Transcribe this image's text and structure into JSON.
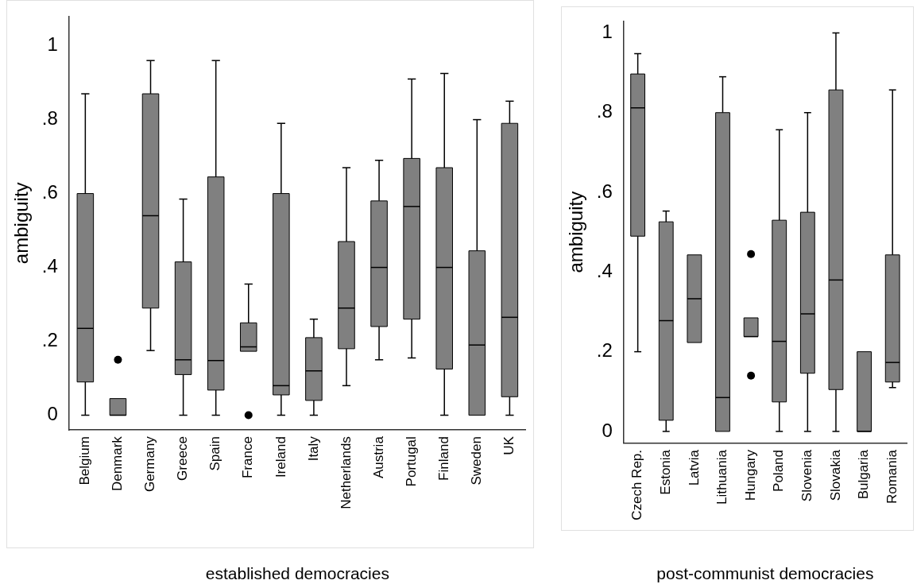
{
  "chart_data": [
    {
      "type": "box",
      "xlabel": "established democracies",
      "ylabel": "ambiguity",
      "categories": [
        "Belgium",
        "Denmark",
        "Germany",
        "Greece",
        "Spain",
        "France",
        "Ireland",
        "Italy",
        "Netherlands",
        "Austria",
        "Portugal",
        "Finland",
        "Sweden",
        "UK"
      ],
      "ylim": [
        -0.04,
        1.08
      ],
      "yticks": [
        {
          "value": 0,
          "label": "0"
        },
        {
          "value": 0.2,
          "label": ".2"
        },
        {
          "value": 0.4,
          "label": ".4"
        },
        {
          "value": 0.6,
          "label": ".6"
        },
        {
          "value": 0.8,
          "label": ".8"
        },
        {
          "value": 1,
          "label": "1"
        }
      ],
      "grid": false,
      "series": [
        {
          "color": "#808080",
          "boxes": [
            {
              "low": 0,
              "q1": 0.09,
              "median": 0.235,
              "q3": 0.6,
              "high": 0.87
            },
            {
              "low": 0,
              "q1": 0,
              "median": 0,
              "q3": 0.045,
              "high": 0.045,
              "outliers": [
                0.15
              ]
            },
            {
              "low": 0.175,
              "q1": 0.29,
              "median": 0.54,
              "q3": 0.87,
              "high": 0.96
            },
            {
              "low": 0,
              "q1": 0.11,
              "median": 0.15,
              "q3": 0.415,
              "high": 0.585
            },
            {
              "low": 0,
              "q1": 0.068,
              "median": 0.148,
              "q3": 0.645,
              "high": 0.96
            },
            {
              "low": 0.173,
              "q1": 0.173,
              "median": 0.185,
              "q3": 0.25,
              "high": 0.355,
              "outliers": [
                0
              ]
            },
            {
              "low": 0,
              "q1": 0.055,
              "median": 0.08,
              "q3": 0.6,
              "high": 0.79
            },
            {
              "low": 0,
              "q1": 0.04,
              "median": 0.12,
              "q3": 0.21,
              "high": 0.26
            },
            {
              "low": 0.08,
              "q1": 0.18,
              "median": 0.29,
              "q3": 0.47,
              "high": 0.67
            },
            {
              "low": 0.15,
              "q1": 0.24,
              "median": 0.4,
              "q3": 0.58,
              "high": 0.69
            },
            {
              "low": 0.155,
              "q1": 0.26,
              "median": 0.565,
              "q3": 0.695,
              "high": 0.91
            },
            {
              "low": 0,
              "q1": 0.125,
              "median": 0.4,
              "q3": 0.67,
              "high": 0.925
            },
            {
              "low": 0,
              "q1": 0,
              "median": 0.19,
              "q3": 0.445,
              "high": 0.8
            },
            {
              "low": 0,
              "q1": 0.05,
              "median": 0.265,
              "q3": 0.79,
              "high": 0.85
            }
          ]
        }
      ]
    },
    {
      "type": "box",
      "xlabel": "post-communist democracies",
      "ylabel": "ambiguity",
      "categories": [
        "Czech Rep.",
        "Estonia",
        "Latvia",
        "Lithuania",
        "Hungary",
        "Poland",
        "Slovenia",
        "Slovakia",
        "Bulgaria",
        "Romania"
      ],
      "ylim": [
        -0.03,
        1.03
      ],
      "yticks": [
        {
          "value": 0,
          "label": "0"
        },
        {
          "value": 0.2,
          "label": ".2"
        },
        {
          "value": 0.4,
          "label": ".4"
        },
        {
          "value": 0.6,
          "label": ".6"
        },
        {
          "value": 0.8,
          "label": ".8"
        },
        {
          "value": 1,
          "label": "1"
        }
      ],
      "grid": false,
      "series": [
        {
          "color": "#808080",
          "boxes": [
            {
              "low": 0.2,
              "q1": 0.49,
              "median": 0.812,
              "q3": 0.897,
              "high": 0.948
            },
            {
              "low": 0,
              "q1": 0.028,
              "median": 0.278,
              "q3": 0.526,
              "high": 0.553
            },
            {
              "low": 0.223,
              "q1": 0.223,
              "median": 0.333,
              "q3": 0.443,
              "high": 0.443
            },
            {
              "low": 0,
              "q1": 0,
              "median": 0.085,
              "q3": 0.8,
              "high": 0.89
            },
            {
              "low": 0.238,
              "q1": 0.238,
              "median": 0.238,
              "q3": 0.285,
              "high": 0.285,
              "outliers": [
                0.445,
                0.14
              ]
            },
            {
              "low": 0,
              "q1": 0.074,
              "median": 0.226,
              "q3": 0.53,
              "high": 0.757
            },
            {
              "low": 0,
              "q1": 0.146,
              "median": 0.295,
              "q3": 0.55,
              "high": 0.8
            },
            {
              "low": 0,
              "q1": 0.105,
              "median": 0.38,
              "q3": 0.857,
              "high": 1
            },
            {
              "low": 0,
              "q1": 0,
              "median": 0,
              "q3": 0.2,
              "high": 0.2
            },
            {
              "low": 0.11,
              "q1": 0.124,
              "median": 0.173,
              "q3": 0.443,
              "high": 0.857
            }
          ]
        }
      ]
    }
  ]
}
